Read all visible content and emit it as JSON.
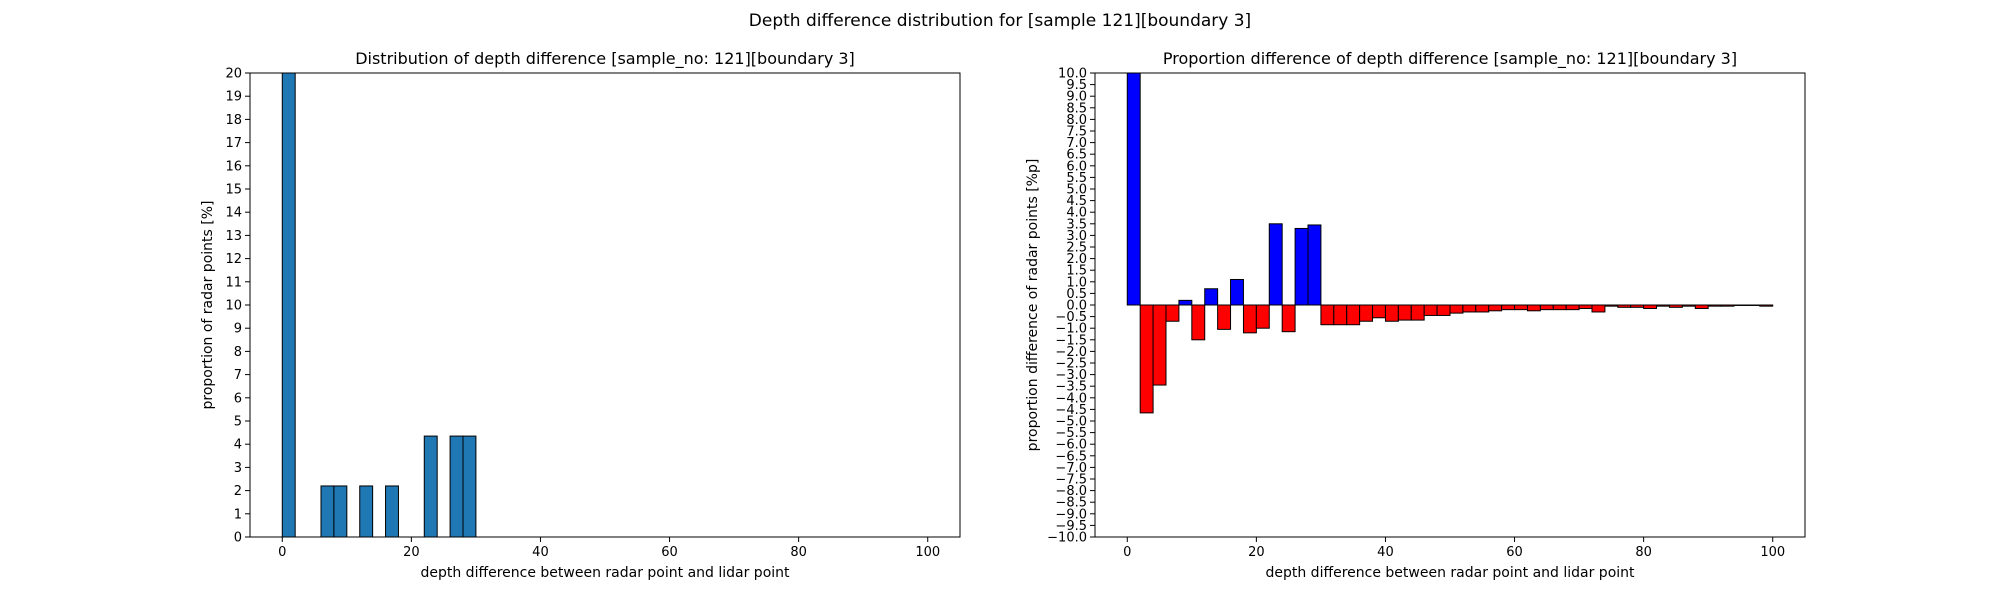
{
  "figure_title": "Depth difference distribution for [sample 121][boundary 3]",
  "chart_data": [
    {
      "type": "bar",
      "title": "Distribution of depth difference [sample_no: 121][boundary 3]",
      "xlabel": "depth difference between radar point and lidar point",
      "ylabel": "proportion of radar points [%]",
      "xlim": [
        -5,
        105
      ],
      "ylim": [
        0,
        20
      ],
      "xticks": [
        0,
        20,
        40,
        60,
        80,
        100
      ],
      "yticks": [
        0,
        1,
        2,
        3,
        4,
        5,
        6,
        7,
        8,
        9,
        10,
        11,
        12,
        13,
        14,
        15,
        16,
        17,
        18,
        19,
        20
      ],
      "bar_width": 2,
      "x": [
        1,
        7,
        9,
        13,
        17,
        23,
        27,
        29
      ],
      "values": [
        20,
        2.2,
        2.2,
        2.2,
        2.2,
        4.35,
        4.35,
        4.35
      ],
      "bar_color": "#1f77b4",
      "edge_color": "#000000",
      "grid": false
    },
    {
      "type": "bar",
      "title": "Proportion difference of depth difference [sample_no: 121][boundary 3]",
      "xlabel": "depth difference between radar point and lidar point",
      "ylabel": "proportion difference of radar points [%p]",
      "xlim": [
        -5,
        105
      ],
      "ylim": [
        -10,
        10
      ],
      "xticks": [
        0,
        20,
        40,
        60,
        80,
        100
      ],
      "yticks": [
        "-10.0",
        "-9.5",
        "-9.0",
        "-8.5",
        "-8.0",
        "-7.5",
        "-7.0",
        "-6.5",
        "-6.0",
        "-5.5",
        "-5.0",
        "-4.5",
        "-4.0",
        "-3.5",
        "-3.0",
        "-2.5",
        "-2.0",
        "-1.5",
        "-1.0",
        "-0.5",
        "0.0",
        "0.5",
        "1.0",
        "1.5",
        "2.0",
        "2.5",
        "3.0",
        "3.5",
        "4.0",
        "4.5",
        "5.0",
        "5.5",
        "6.0",
        "6.5",
        "7.0",
        "7.5",
        "8.0",
        "8.5",
        "9.0",
        "9.5",
        "10.0"
      ],
      "bar_width": 2,
      "x": [
        1,
        3,
        5,
        7,
        9,
        11,
        13,
        15,
        17,
        19,
        21,
        23,
        25,
        27,
        29,
        31,
        33,
        35,
        37,
        39,
        41,
        43,
        45,
        47,
        49,
        51,
        53,
        55,
        57,
        59,
        61,
        63,
        65,
        67,
        69,
        71,
        73,
        75,
        77,
        79,
        81,
        83,
        85,
        87,
        89,
        91,
        93,
        95,
        97,
        99
      ],
      "values": [
        10.0,
        -4.65,
        -3.45,
        -0.7,
        0.2,
        -1.5,
        0.7,
        -1.05,
        1.1,
        -1.2,
        -1.0,
        3.5,
        -1.15,
        3.3,
        3.45,
        -0.85,
        -0.85,
        -0.85,
        -0.7,
        -0.55,
        -0.7,
        -0.65,
        -0.65,
        -0.45,
        -0.45,
        -0.35,
        -0.3,
        -0.3,
        -0.25,
        -0.2,
        -0.2,
        -0.25,
        -0.2,
        -0.2,
        -0.2,
        -0.15,
        -0.3,
        -0.05,
        -0.1,
        -0.1,
        -0.15,
        -0.05,
        -0.1,
        -0.05,
        -0.15,
        -0.05,
        -0.05,
        -0.02,
        -0.02,
        -0.05
      ],
      "positive_color": "#0000ff",
      "negative_color": "#ff0000",
      "edge_color": "#000000",
      "grid": false
    }
  ]
}
